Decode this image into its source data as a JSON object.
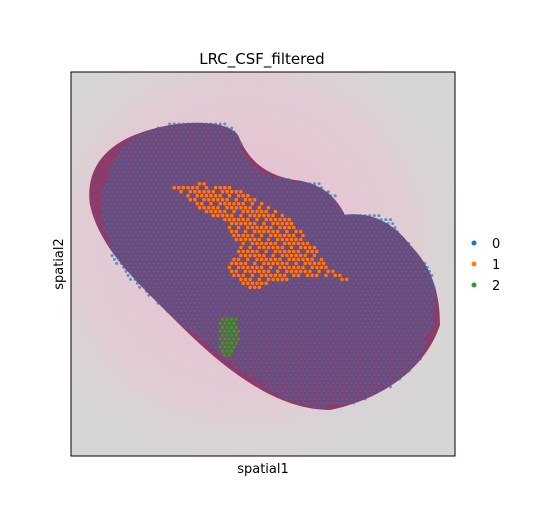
{
  "chart_data": {
    "type": "scatter",
    "title": "LRC_CSF_filtered",
    "xlabel": "spatial1",
    "ylabel": "spatial2",
    "grid": false,
    "legend_placement": "right-center",
    "ticks": "none",
    "background": "histology-image",
    "series": [
      {
        "name": "0",
        "color": "#1f77b4"
      },
      {
        "name": "1",
        "color": "#ff7f0e"
      },
      {
        "name": "2",
        "color": "#2ca02c"
      }
    ]
  }
}
